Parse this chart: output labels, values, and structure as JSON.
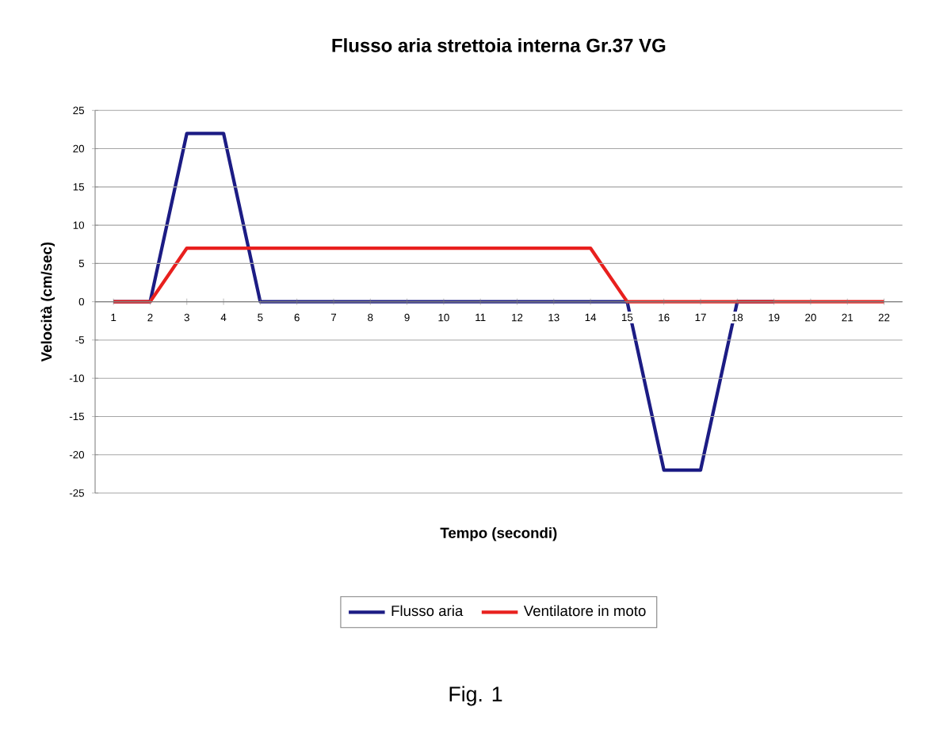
{
  "chart_data": {
    "type": "line",
    "title": "Flusso aria strettoia interna Gr.37 VG",
    "xlabel": "Tempo (secondi)",
    "ylabel": "Velocità (cm/sec)",
    "categories": [
      "1",
      "2",
      "3",
      "4",
      "5",
      "6",
      "7",
      "8",
      "9",
      "10",
      "11",
      "12",
      "13",
      "14",
      "15",
      "16",
      "17",
      "18",
      "19",
      "20",
      "21",
      "22"
    ],
    "series": [
      {
        "name": "Flusso aria",
        "color": "#1c1c84",
        "values": [
          0,
          0,
          22,
          22,
          0,
          0,
          0,
          0,
          0,
          0,
          0,
          0,
          0,
          0,
          0,
          -22,
          -22,
          0,
          0,
          null,
          null,
          null
        ]
      },
      {
        "name": "Ventilatore in moto",
        "color": "#e8201e",
        "values": [
          0,
          0,
          7,
          7,
          7,
          7,
          7,
          7,
          7,
          7,
          7,
          7,
          7,
          7,
          0,
          0,
          0,
          0,
          0,
          0,
          0,
          0
        ]
      }
    ],
    "ylim": [
      -25,
      25
    ],
    "yticks": [
      -25,
      -20,
      -15,
      -10,
      -5,
      0,
      5,
      10,
      15,
      20,
      25
    ],
    "grid": "y",
    "legend": "bottom",
    "marker": "none",
    "line_style": "solid",
    "annotations": [
      "Fig. 1"
    ]
  }
}
